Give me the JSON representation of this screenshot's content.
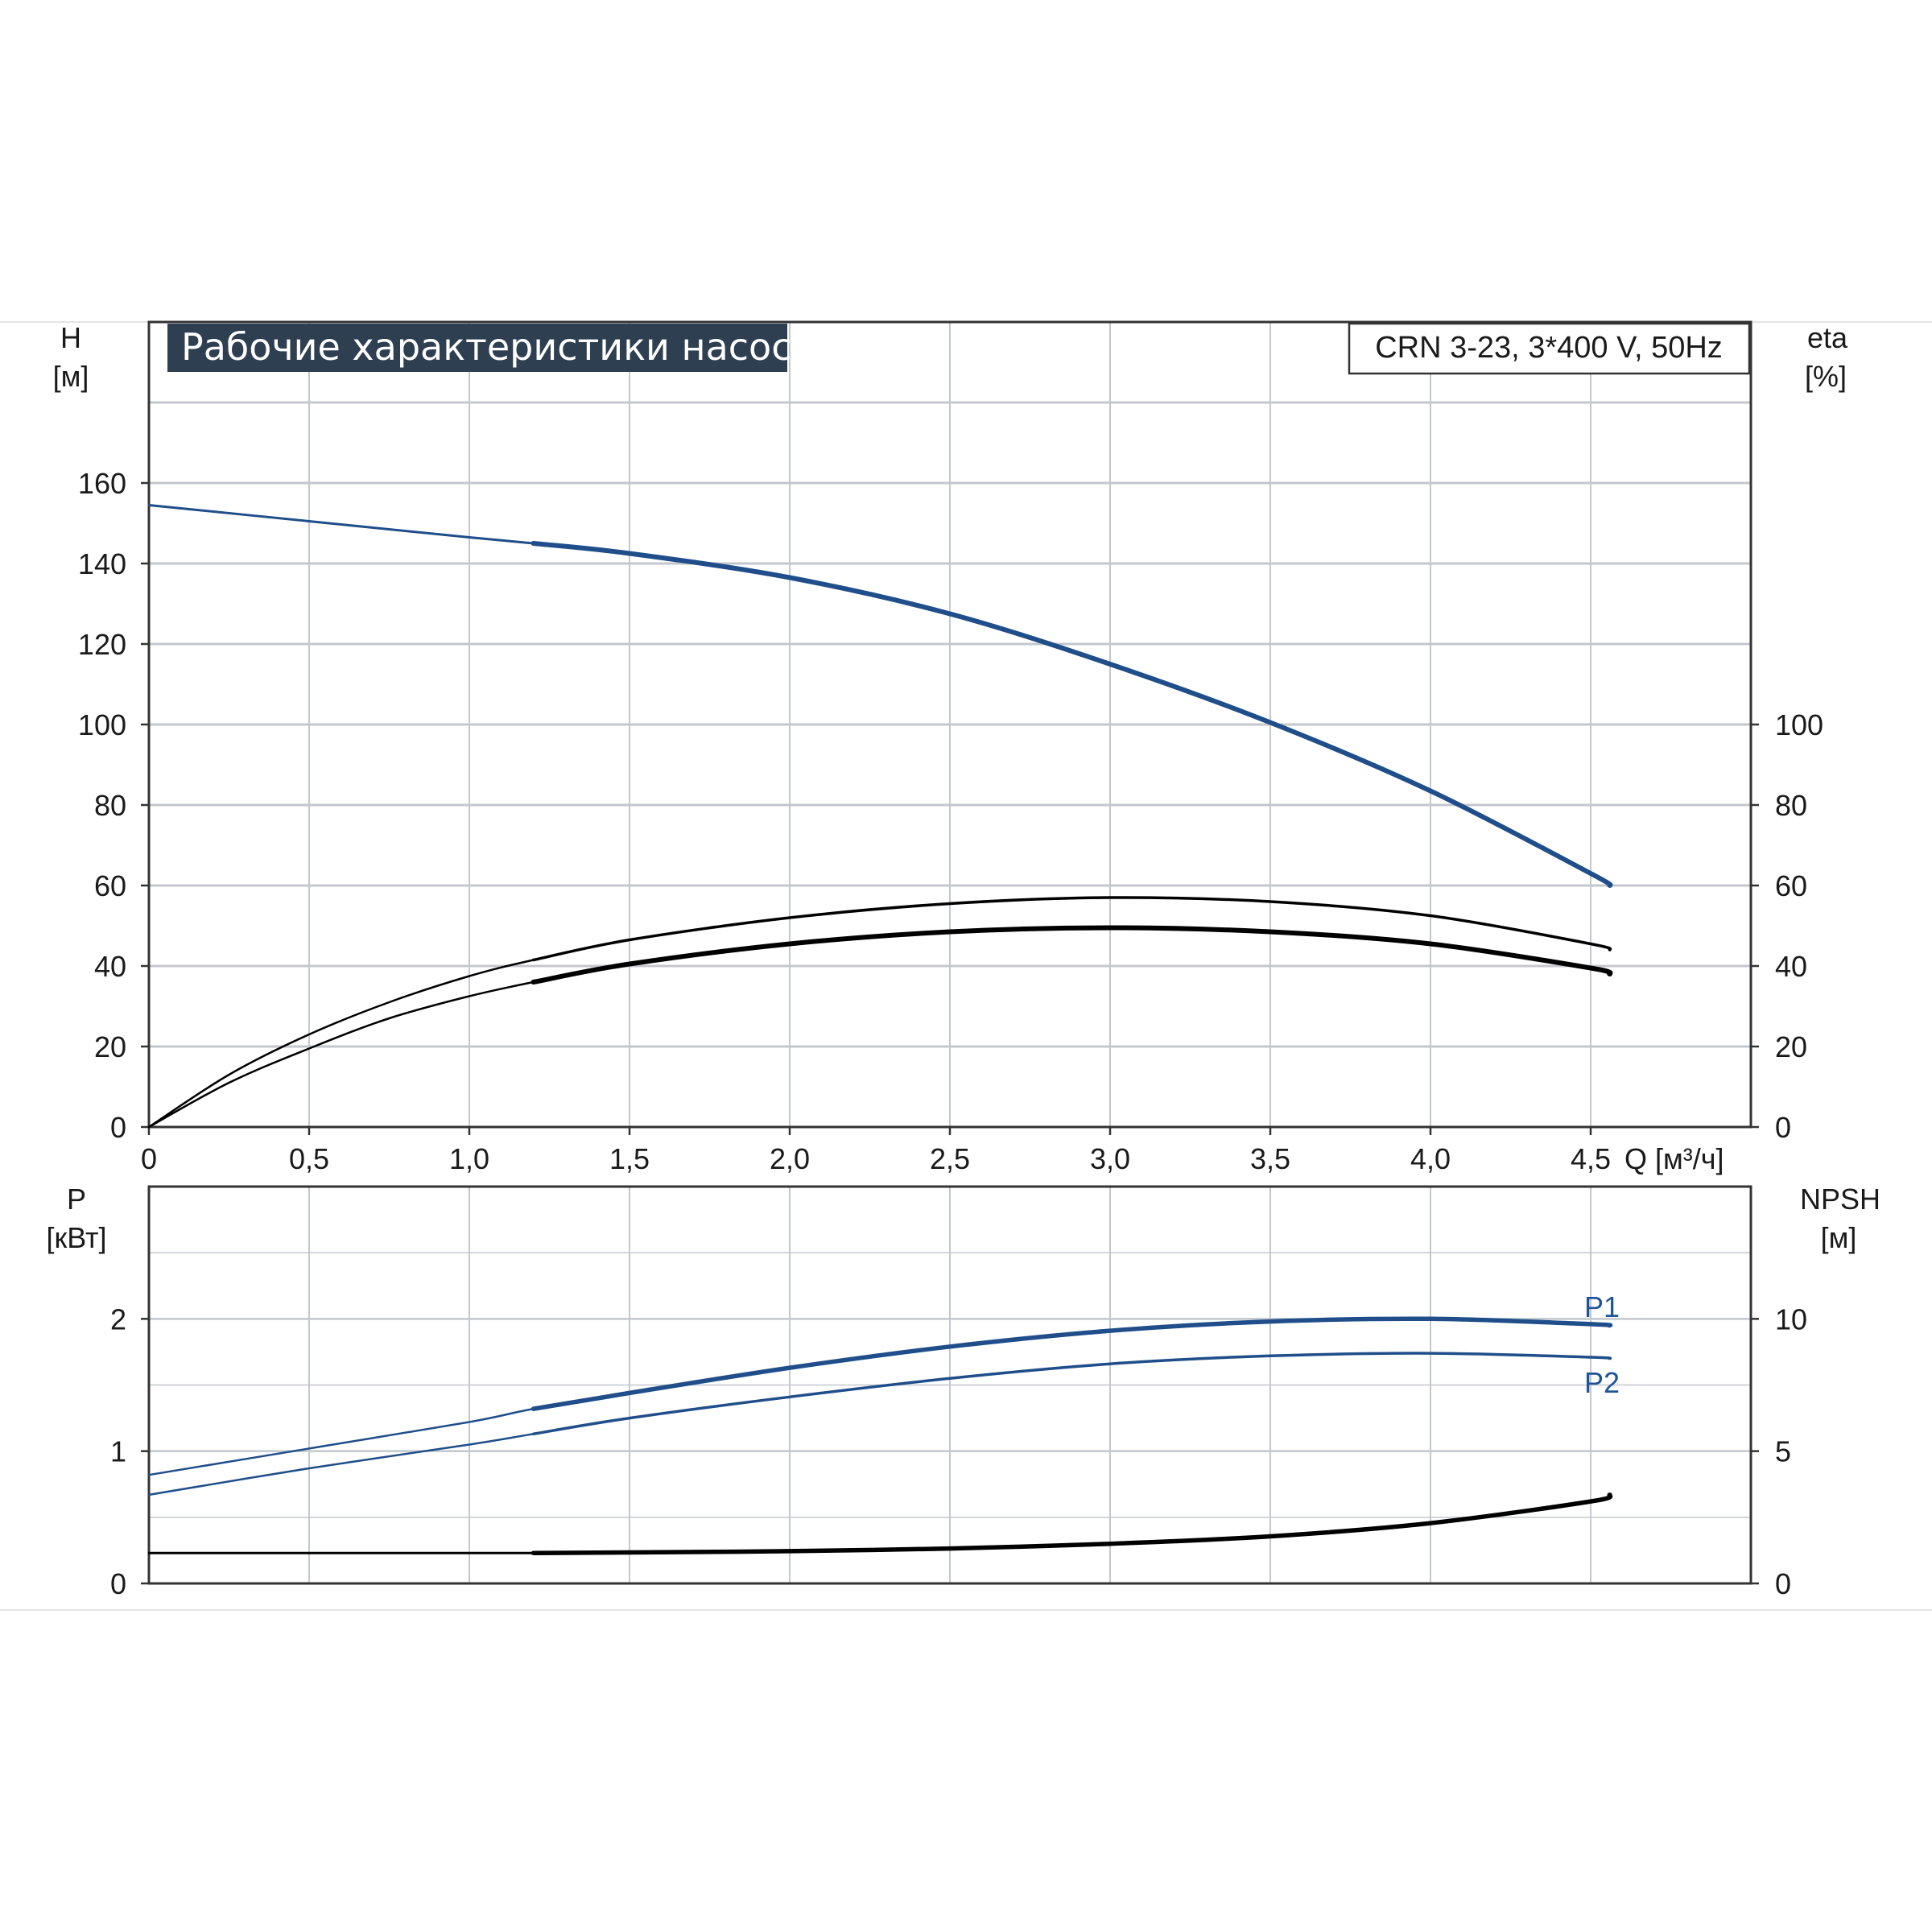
{
  "colors": {
    "blue": "#1f4e8a",
    "grid": "#c3c8ce",
    "frame": "#333333",
    "title_bg": "#2f3f52"
  },
  "chart_data": [
    {
      "type": "line",
      "title": "Рабочие характеристики насоса",
      "model": "CRN 3-23, 3*400 V, 50Hz",
      "xlabel": "Q [м³/ч]",
      "ylabel_left": {
        "name": "H",
        "unit": "[м]"
      },
      "ylabel_right": {
        "name": "eta",
        "unit": "[%]"
      },
      "xlim": [
        0,
        5.0
      ],
      "ylim_left": [
        0,
        180
      ],
      "ylim_right": [
        0,
        180
      ],
      "x_ticks": [
        "0",
        "0,5",
        "1,0",
        "1,5",
        "2,0",
        "2,5",
        "3,0",
        "3,5",
        "4,0",
        "4,5"
      ],
      "y_ticks_left": [
        "0",
        "20",
        "40",
        "60",
        "80",
        "100",
        "120",
        "140",
        "160"
      ],
      "y_ticks_right": [
        "0",
        "20",
        "40",
        "60",
        "80",
        "100"
      ],
      "grid": true,
      "series": [
        {
          "axis": "left",
          "color": "blue",
          "x": [
            0,
            0.5,
            1.0,
            1.2,
            1.5,
            2.0,
            2.5,
            3.0,
            3.5,
            4.0,
            4.5,
            4.56
          ],
          "y": [
            154.5,
            150.5,
            146.5,
            145,
            142.5,
            136.5,
            127.5,
            115,
            100.5,
            83.5,
            63,
            60
          ]
        },
        {
          "axis": "right",
          "color": "black",
          "x": [
            0,
            0.25,
            0.5,
            0.75,
            1.0,
            1.2,
            1.5,
            2.0,
            2.5,
            3.0,
            3.5,
            4.0,
            4.5,
            4.56
          ],
          "y": [
            0,
            13,
            23,
            31,
            37.5,
            41.5,
            46.5,
            52,
            55.5,
            57,
            56,
            52.5,
            45.5,
            44
          ]
        },
        {
          "axis": "right",
          "color": "black",
          "x": [
            0,
            0.25,
            0.5,
            0.75,
            1.0,
            1.2,
            1.5,
            2.0,
            2.5,
            3.0,
            3.5,
            4.0,
            4.5,
            4.56
          ],
          "y": [
            0,
            11,
            19.5,
            27,
            32.5,
            36,
            40.5,
            45.5,
            48.5,
            49.5,
            48.5,
            45.5,
            39.5,
            38
          ]
        }
      ]
    },
    {
      "type": "line",
      "xlim": [
        0,
        5.0
      ],
      "ylim_left": [
        0,
        3.0
      ],
      "ylim_right": [
        0,
        15
      ],
      "ylabel_left": {
        "name": "P",
        "unit": "[кВт]"
      },
      "ylabel_right": {
        "name": "NPSH",
        "unit": "[м]"
      },
      "y_ticks_left": [
        "0",
        "1",
        "2"
      ],
      "y_ticks_right": [
        "0",
        "5",
        "10"
      ],
      "grid": true,
      "series": [
        {
          "name": "P1",
          "axis": "left",
          "color": "blue",
          "x": [
            0,
            0.5,
            1.0,
            1.2,
            1.5,
            2.0,
            2.5,
            3.0,
            3.5,
            4.0,
            4.5,
            4.56
          ],
          "y": [
            0.82,
            1.02,
            1.22,
            1.32,
            1.44,
            1.63,
            1.79,
            1.91,
            1.98,
            2.0,
            1.96,
            1.95
          ]
        },
        {
          "name": "P2",
          "axis": "left",
          "color": "blue",
          "x": [
            0,
            0.5,
            1.0,
            1.2,
            1.5,
            2.0,
            2.5,
            3.0,
            3.5,
            4.0,
            4.5,
            4.56
          ],
          "y": [
            0.67,
            0.87,
            1.05,
            1.13,
            1.25,
            1.41,
            1.55,
            1.66,
            1.72,
            1.74,
            1.71,
            1.7
          ]
        },
        {
          "axis": "right",
          "color": "black",
          "x": [
            0,
            0.5,
            1.0,
            1.2,
            1.5,
            2.0,
            2.5,
            3.0,
            3.5,
            4.0,
            4.5,
            4.56
          ],
          "y": [
            1.15,
            1.15,
            1.15,
            1.15,
            1.17,
            1.22,
            1.32,
            1.5,
            1.78,
            2.28,
            3.1,
            3.35
          ]
        }
      ]
    }
  ]
}
